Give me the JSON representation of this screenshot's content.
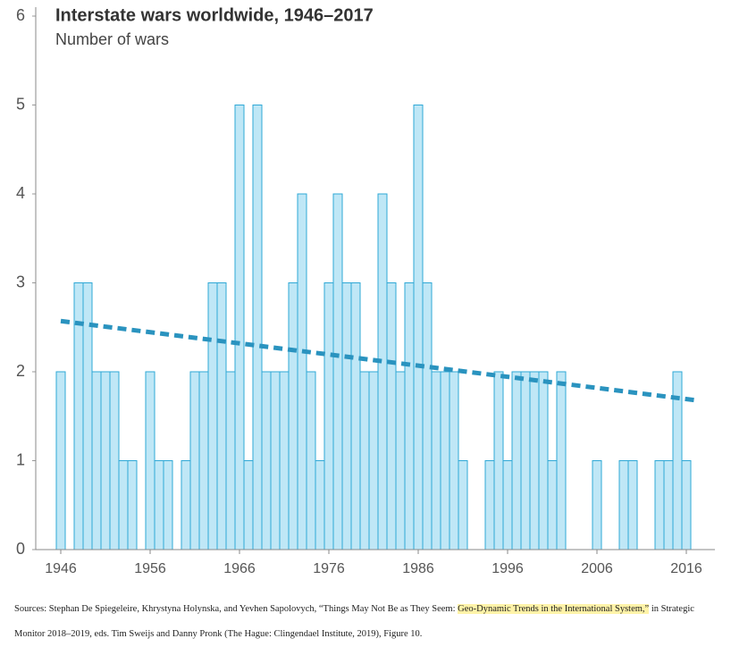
{
  "chart_data": {
    "type": "bar",
    "title": "Interstate wars worldwide, 1946–2017",
    "subtitle": "Number of wars",
    "x": [
      1946,
      1947,
      1948,
      1949,
      1950,
      1951,
      1952,
      1953,
      1954,
      1955,
      1956,
      1957,
      1958,
      1959,
      1960,
      1961,
      1962,
      1963,
      1964,
      1965,
      1966,
      1967,
      1968,
      1969,
      1970,
      1971,
      1972,
      1973,
      1974,
      1975,
      1976,
      1977,
      1978,
      1979,
      1980,
      1981,
      1982,
      1983,
      1984,
      1985,
      1986,
      1987,
      1988,
      1989,
      1990,
      1991,
      1992,
      1993,
      1994,
      1995,
      1996,
      1997,
      1998,
      1999,
      2000,
      2001,
      2002,
      2003,
      2004,
      2005,
      2006,
      2007,
      2008,
      2009,
      2010,
      2011,
      2012,
      2013,
      2014,
      2015,
      2016,
      2017
    ],
    "values": [
      2,
      0,
      3,
      3,
      2,
      2,
      2,
      1,
      1,
      0,
      2,
      1,
      1,
      0,
      1,
      2,
      2,
      3,
      3,
      2,
      5,
      1,
      5,
      2,
      2,
      2,
      3,
      4,
      2,
      1,
      3,
      4,
      3,
      3,
      2,
      2,
      4,
      3,
      2,
      3,
      5,
      3,
      2,
      2,
      2,
      1,
      0,
      0,
      1,
      2,
      1,
      2,
      2,
      2,
      2,
      1,
      2,
      0,
      0,
      0,
      1,
      0,
      0,
      1,
      1,
      0,
      0,
      1,
      1,
      2,
      1,
      0
    ],
    "color": "#bfe7f6",
    "edge_color": "#2fa8d6",
    "trend": {
      "x": [
        1946,
        2017
      ],
      "values": [
        2.57,
        1.68
      ],
      "color": "#2a93bf"
    },
    "xlim": [
      1943.2,
      2019.2
    ],
    "ylim": [
      0,
      6
    ],
    "xticks": [
      1946,
      1956,
      1966,
      1976,
      1986,
      1996,
      2006,
      2016
    ],
    "yticks": [
      0,
      1,
      2,
      3,
      4,
      5,
      6
    ]
  },
  "footer": {
    "before": "Sources: Stephan De Spiegeleire, Khrystyna Holynska, and Yevhen Sapolovych, “Things May Not Be as They Seem: ",
    "highlight": "Geo-Dynamic Trends in the International System,”",
    "after": " in Strategic Monitor 2018–2019, eds. Tim Sweijs and Danny Pronk (The Hague: Clingendael Institute, 2019), Figure 10."
  }
}
